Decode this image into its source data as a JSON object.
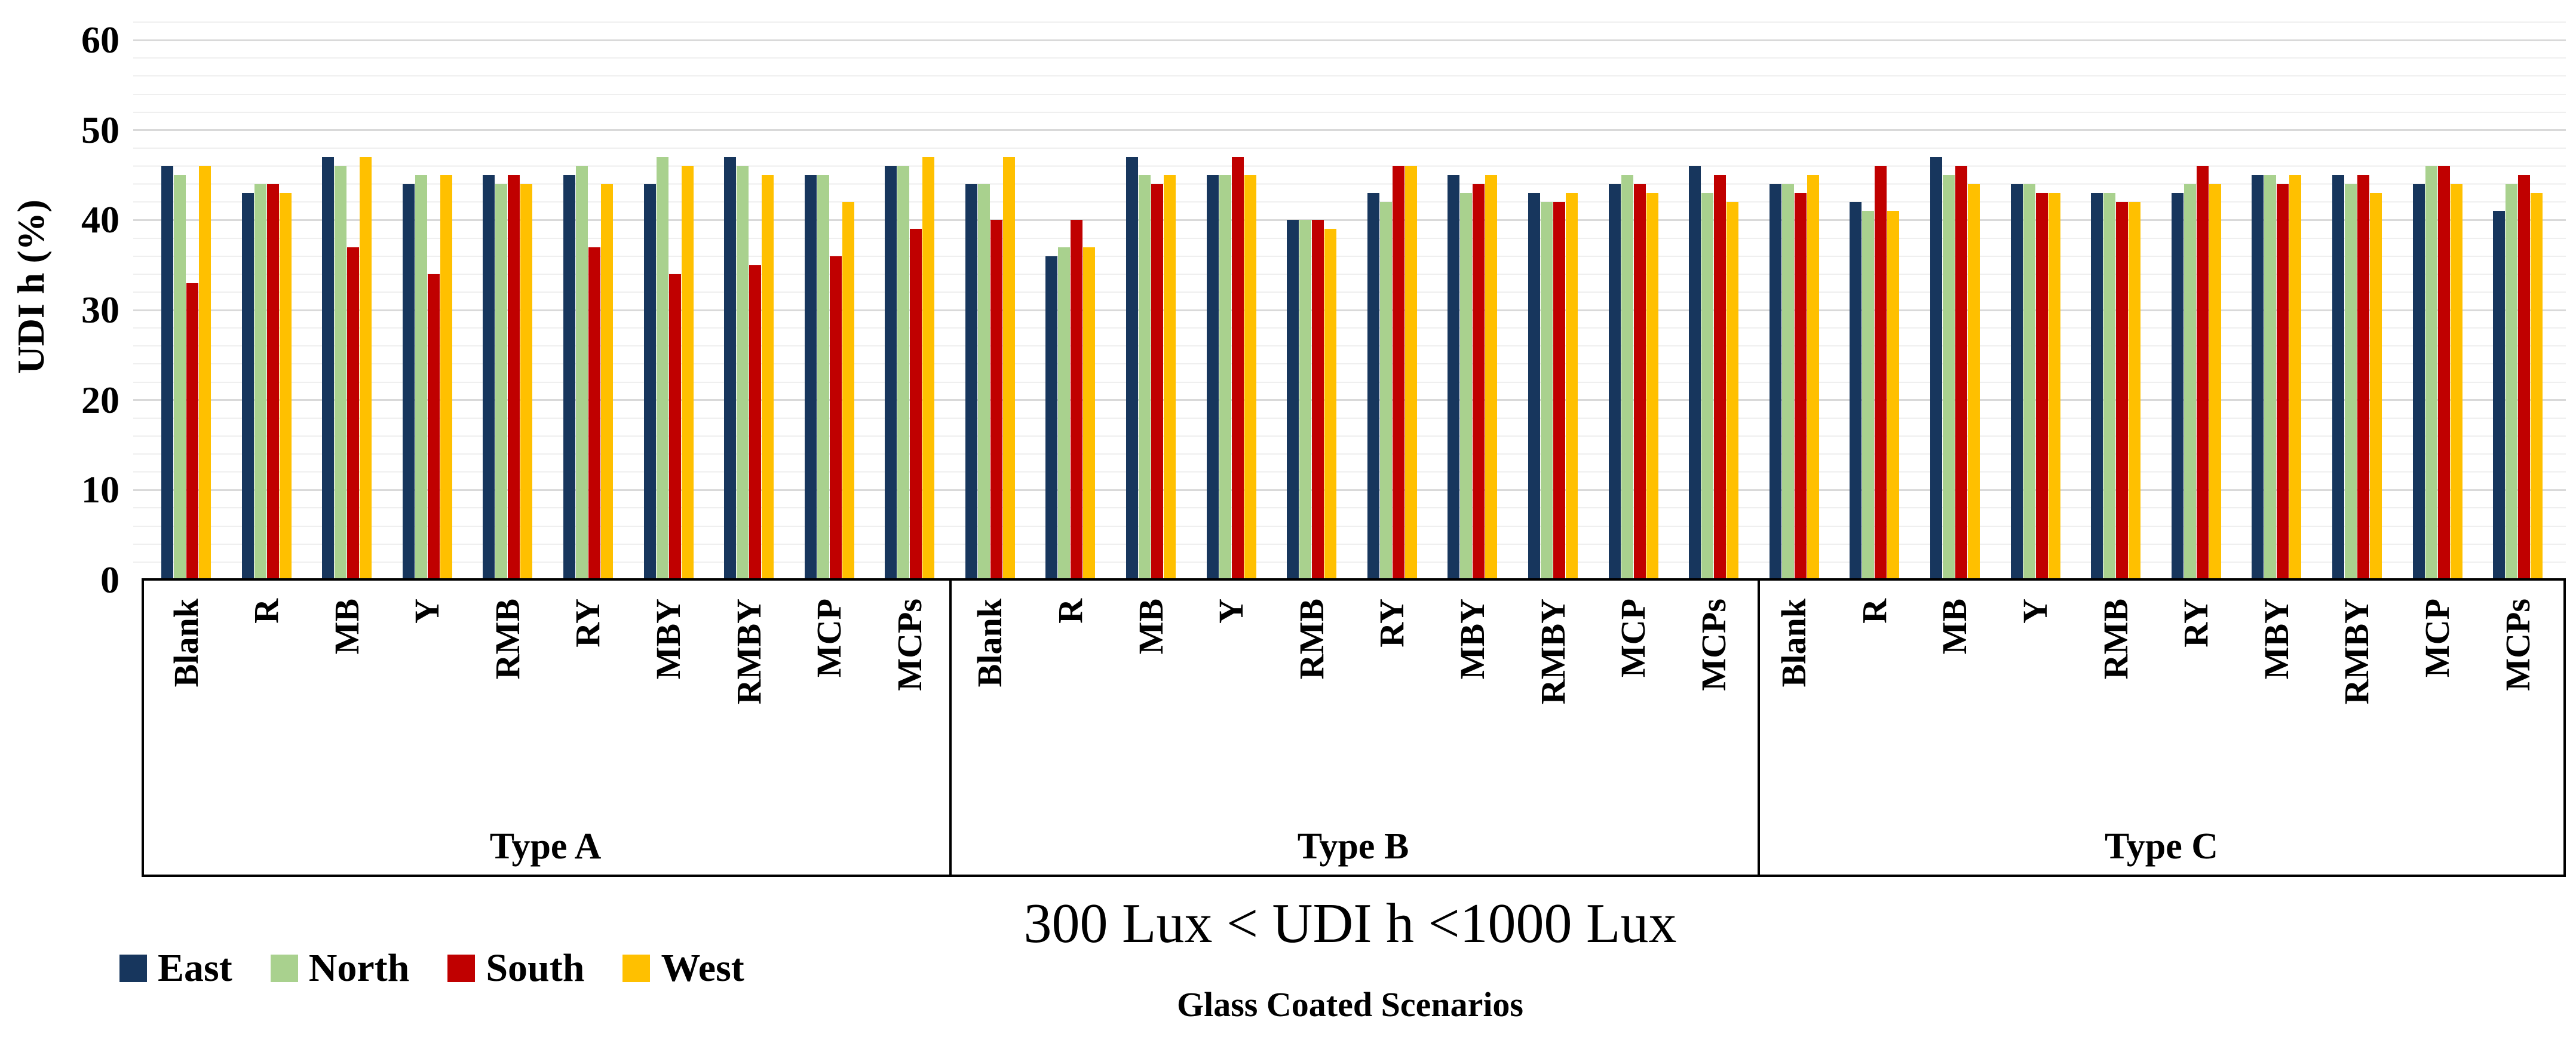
{
  "chart_data": {
    "type": "bar",
    "title": "300 Lux < UDI h <1000 Lux",
    "xlabel": "Glass Coated Scenarios",
    "ylabel": "UDI h (%)",
    "ylim": [
      0,
      60
    ],
    "y_major_ticks": [
      60,
      50,
      40,
      30,
      20,
      10,
      0
    ],
    "y_minor_step": 2,
    "grid": true,
    "legend_position": "bottom-left",
    "group_labels": [
      "Type A",
      "Type B",
      "Type C"
    ],
    "categories": [
      "Blank",
      "R",
      "MB",
      "Y",
      "RMB",
      "RY",
      "MBY",
      "RMBY",
      "MCP",
      "MCPs"
    ],
    "series": [
      {
        "name": "East",
        "color": "#17365D",
        "values": {
          "type_a": [
            46,
            43,
            47,
            44,
            45,
            45,
            44,
            47,
            45,
            46
          ],
          "type_b": [
            44,
            36,
            47,
            45,
            40,
            43,
            45,
            43,
            44,
            46
          ],
          "type_c": [
            44,
            42,
            47,
            44,
            43,
            43,
            45,
            45,
            44,
            41
          ]
        }
      },
      {
        "name": "North",
        "color": "#A9D18E",
        "values": {
          "type_a": [
            45,
            44,
            46,
            45,
            44,
            46,
            47,
            46,
            45,
            46
          ],
          "type_b": [
            44,
            37,
            45,
            45,
            40,
            42,
            43,
            42,
            45,
            43
          ],
          "type_c": [
            44,
            41,
            45,
            44,
            43,
            44,
            45,
            44,
            46,
            44
          ]
        }
      },
      {
        "name": "South",
        "color": "#C00000",
        "values": {
          "type_a": [
            33,
            44,
            37,
            34,
            45,
            37,
            34,
            35,
            36,
            39
          ],
          "type_b": [
            40,
            40,
            44,
            47,
            40,
            46,
            44,
            42,
            44,
            45
          ],
          "type_c": [
            43,
            46,
            46,
            43,
            42,
            46,
            44,
            45,
            46,
            45
          ]
        }
      },
      {
        "name": "West",
        "color": "#FFC000",
        "values": {
          "type_a": [
            46,
            43,
            47,
            45,
            44,
            44,
            46,
            45,
            42,
            47
          ],
          "type_b": [
            47,
            37,
            45,
            45,
            39,
            46,
            45,
            43,
            43,
            42
          ],
          "type_c": [
            45,
            41,
            44,
            43,
            42,
            44,
            45,
            43,
            44,
            43
          ]
        }
      }
    ]
  }
}
